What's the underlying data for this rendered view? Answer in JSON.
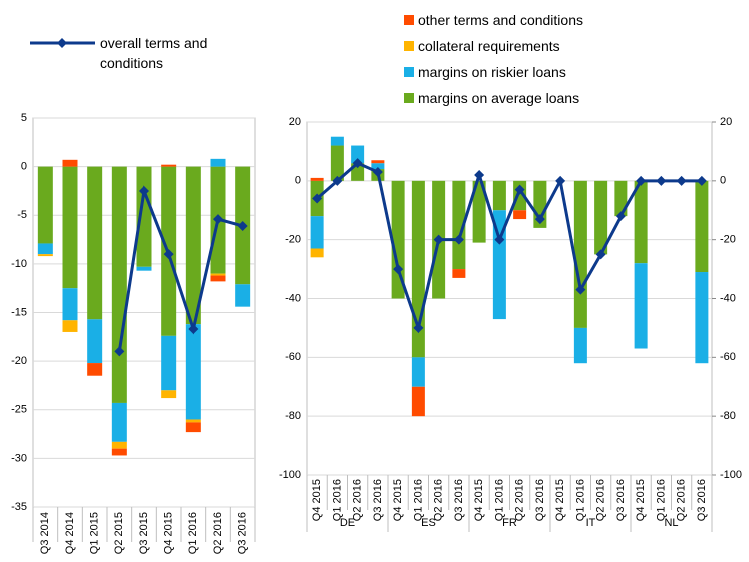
{
  "chart_data": [
    {
      "type": "bar",
      "stacked": true,
      "categories": [
        "Q3 2014",
        "Q4 2014",
        "Q1 2015",
        "Q2 2015",
        "Q3 2015",
        "Q4 2015",
        "Q1 2016",
        "Q2 2016",
        "Q3 2016"
      ],
      "ylim": [
        -35,
        5
      ],
      "yticks": [
        -35,
        -30,
        -25,
        -20,
        -15,
        -10,
        -5,
        0,
        5
      ],
      "grid": true,
      "series": [
        {
          "name": "other terms and conditions",
          "color": "#ff4b00",
          "values": [
            0,
            0.7,
            -1.3,
            -0.7,
            0,
            0.2,
            -1.0,
            -0.6,
            0
          ]
        },
        {
          "name": "collateral requirements",
          "color": "#ffb400",
          "values": [
            -0.2,
            -1.2,
            0,
            -0.7,
            0,
            -0.8,
            -0.3,
            -0.2,
            0
          ]
        },
        {
          "name": "margins on riskier loans",
          "color": "#1aafe6",
          "values": [
            -1.1,
            -3.3,
            -4.5,
            -4.0,
            -0.4,
            -5.6,
            -9.8,
            0.8,
            -2.3
          ]
        },
        {
          "name": "margins on average loans",
          "color": "#6aaa1e",
          "values": [
            -7.9,
            -12.5,
            -15.7,
            -24.3,
            -10.3,
            -17.4,
            -16.2,
            -11.0,
            -12.1
          ]
        },
        {
          "name": "overall terms and conditions",
          "type": "line",
          "color": "#0d3a8c",
          "values": [
            null,
            null,
            null,
            -19.0,
            -2.5,
            -9.0,
            -16.7,
            -5.4,
            -6.1
          ]
        }
      ]
    },
    {
      "type": "bar",
      "stacked": true,
      "groups": [
        "DE",
        "ES",
        "FR",
        "IT",
        "NL"
      ],
      "categories": [
        "Q4 2015",
        "Q1 2016",
        "Q2 2016",
        "Q3 2016",
        "Q4 2015",
        "Q1 2016",
        "Q2 2016",
        "Q3 2016",
        "Q4 2015",
        "Q1 2016",
        "Q2 2016",
        "Q3 2016",
        "Q4 2015",
        "Q1 2016",
        "Q2 2016",
        "Q3 2016",
        "Q4 2015",
        "Q1 2016",
        "Q2 2016",
        "Q3 2016"
      ],
      "ylim": [
        -100,
        20
      ],
      "yticks": [
        -100,
        -80,
        -60,
        -40,
        -20,
        0,
        20
      ],
      "y2lim": [
        -100,
        20
      ],
      "y2ticks": [
        -100,
        -80,
        -60,
        -40,
        -20,
        0,
        20
      ],
      "grid": true,
      "series": [
        {
          "color": "#ff4b00",
          "values": [
            1,
            0,
            0,
            1,
            0,
            -10,
            0,
            -3,
            0,
            0,
            -3,
            0,
            0,
            0,
            0,
            0,
            0,
            0,
            0,
            0
          ]
        },
        {
          "color": "#ffb400",
          "values": [
            -3,
            0,
            0,
            0,
            0,
            0,
            0,
            0,
            0,
            0,
            0,
            0,
            0,
            0,
            0,
            0,
            0,
            0,
            0,
            0
          ]
        },
        {
          "color": "#1aafe6",
          "values": [
            -11,
            3,
            6,
            2,
            0,
            -10,
            0,
            0,
            0,
            -37,
            0,
            0,
            0,
            -12,
            0,
            0,
            -29,
            0,
            0,
            -31
          ]
        },
        {
          "color": "#6aaa1e",
          "values": [
            -12,
            12,
            6,
            4,
            -40,
            -60,
            -40,
            -30,
            -21,
            -10,
            -10,
            -16,
            0,
            -50,
            -25,
            -12,
            -28,
            0,
            0,
            -31
          ]
        },
        {
          "type": "line",
          "color": "#0d3a8c",
          "values": [
            -6,
            0,
            6,
            3,
            -30,
            -50,
            -20,
            -20,
            2,
            -20,
            -3,
            -13,
            0,
            -37,
            -25,
            -12,
            0,
            0,
            0,
            0
          ]
        }
      ]
    }
  ]
}
